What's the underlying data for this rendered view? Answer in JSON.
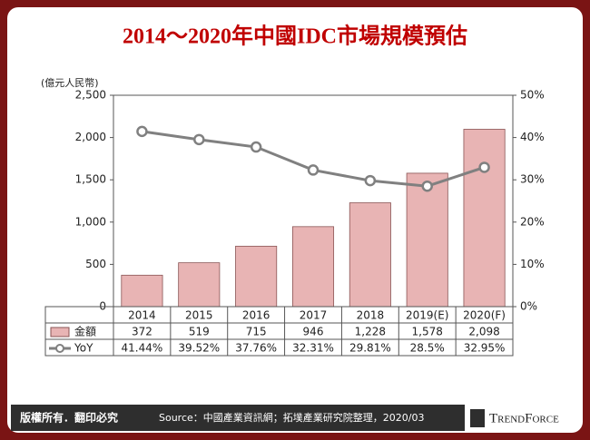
{
  "chart_data": {
    "type": "bar",
    "title": "2014～2020年中國IDC市場規模預估",
    "y_label": "(億元人民幣)",
    "categories": [
      "2014",
      "2015",
      "2016",
      "2017",
      "2018",
      "2019(E)",
      "2020(F)"
    ],
    "series": [
      {
        "name": "金額",
        "color": "#e8b4b4",
        "values": [
          372,
          519,
          715,
          946,
          1228,
          1578,
          2098
        ],
        "value_labels": [
          "372",
          "519",
          "715",
          "946",
          "1,228",
          "1,578",
          "2,098"
        ]
      },
      {
        "name": "YoY",
        "type": "line",
        "axis": "y2",
        "color": "#808080",
        "values": [
          41.44,
          39.52,
          37.76,
          32.31,
          29.81,
          28.5,
          32.95
        ],
        "value_labels": [
          "41.44%",
          "39.52%",
          "37.76%",
          "32.31%",
          "29.81%",
          "28.5%",
          "32.95%"
        ]
      }
    ],
    "ylim": [
      0,
      2500
    ],
    "yticks": [
      0,
      500,
      {
        "value": 1000,
        "label": "1,000"
      },
      {
        "value": 1500,
        "label": "1,500"
      },
      {
        "value": 2000,
        "label": "2,000"
      },
      {
        "value": 2500,
        "label": "2,500"
      }
    ],
    "y2lim": [
      0,
      50
    ],
    "y2ticks": [
      {
        "value": 0,
        "label": "0%"
      },
      {
        "value": 10,
        "label": "10%"
      },
      {
        "value": 20,
        "label": "20%"
      },
      {
        "value": 30,
        "label": "30%"
      },
      {
        "value": 40,
        "label": "40%"
      },
      {
        "value": 50,
        "label": "50%"
      }
    ]
  },
  "footer": {
    "copyright": "版權所有．翻印必究",
    "source": "Source：中國產業資訊網；拓墣產業研究院整理，2020/03",
    "logo": "TrendForce"
  }
}
